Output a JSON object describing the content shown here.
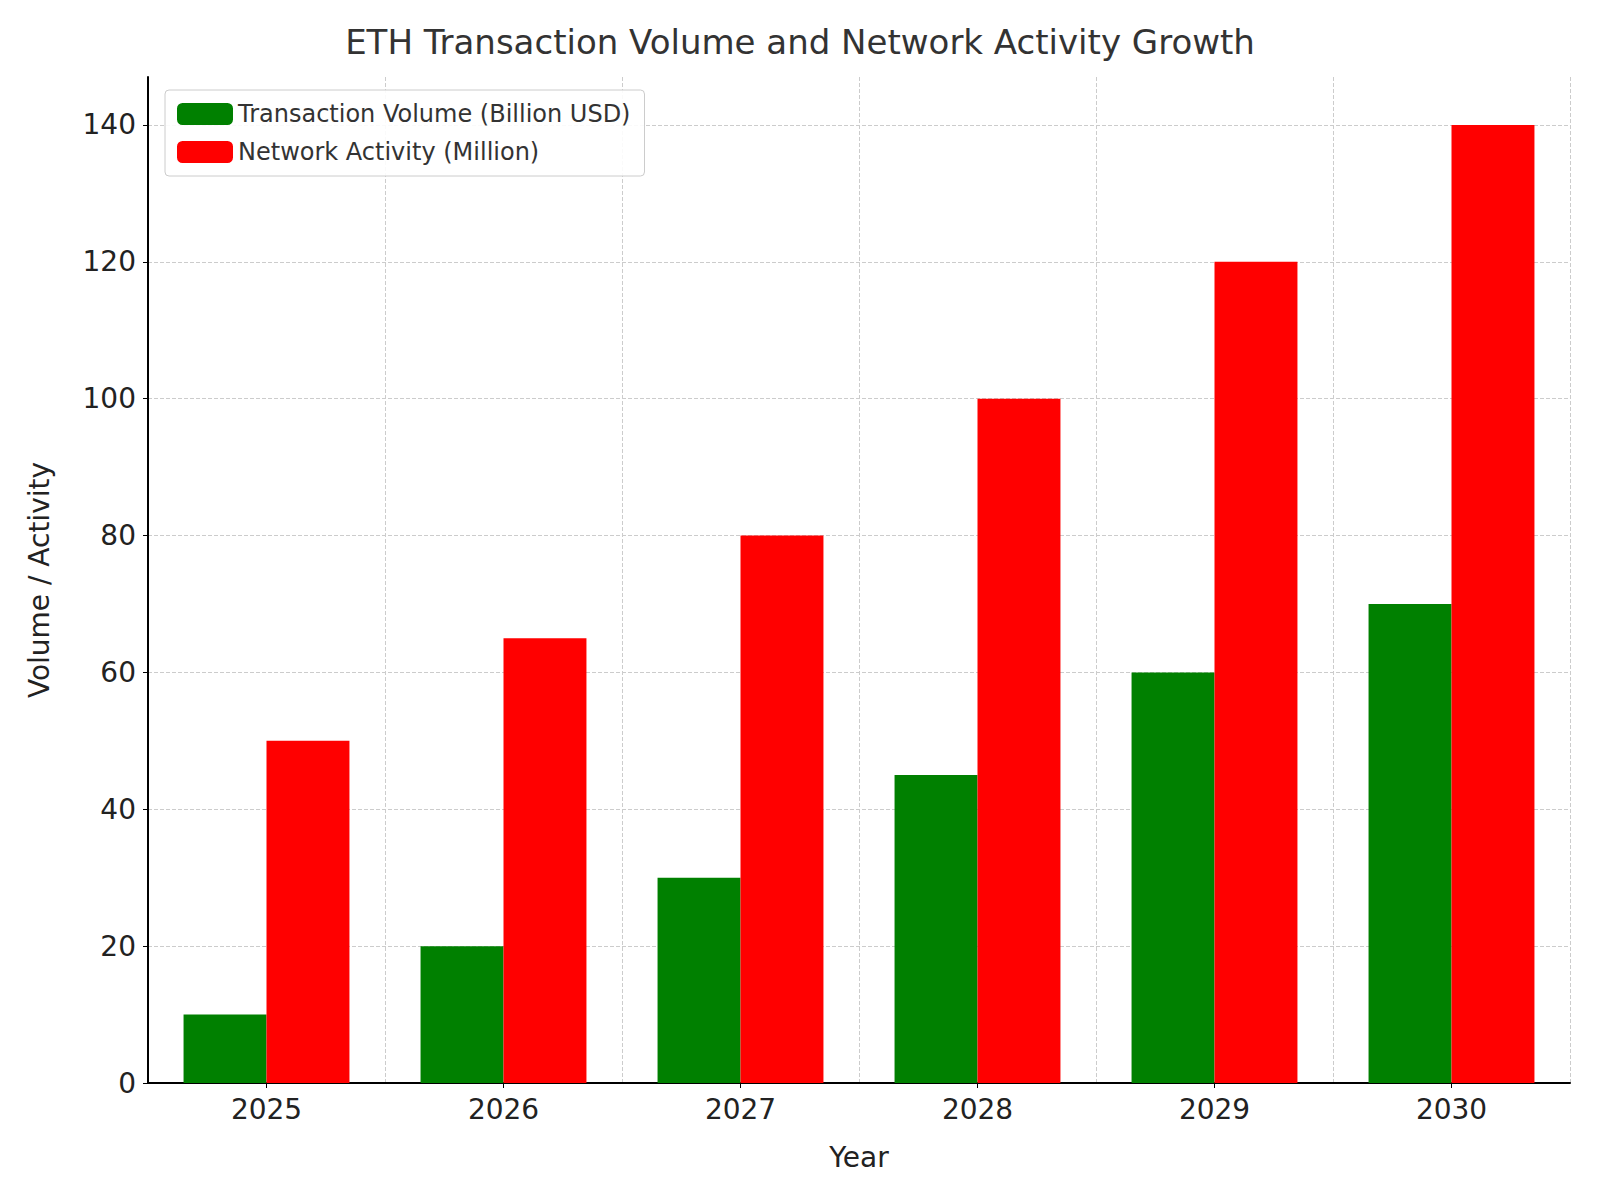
{
  "chart_data": {
    "type": "bar",
    "title": "ETH Transaction Volume and Network Activity Growth",
    "x_label": "Year",
    "y_label": "Volume / Activity",
    "categories": [
      "2025",
      "2026",
      "2027",
      "2028",
      "2029",
      "2030"
    ],
    "series": [
      {
        "name": "Transaction Volume (Billion USD)",
        "color": "#008000",
        "values": [
          10,
          20,
          30,
          45,
          60,
          70
        ]
      },
      {
        "name": "Network Activity (Million)",
        "color": "#ff0000",
        "values": [
          50,
          65,
          80,
          100,
          120,
          140
        ]
      }
    ],
    "ylim": [
      0,
      147
    ],
    "yticks": [
      0,
      20,
      40,
      60,
      80,
      100,
      120,
      140
    ],
    "grid": true,
    "legend": "upper left"
  }
}
